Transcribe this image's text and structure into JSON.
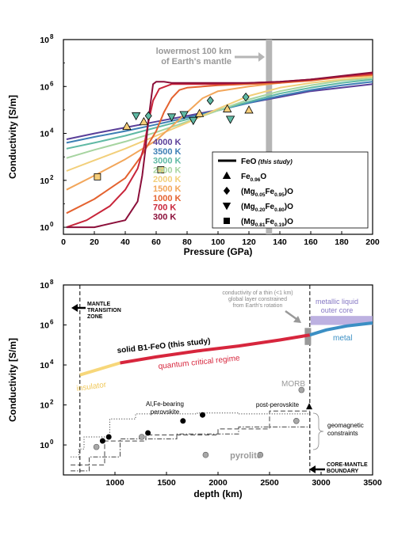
{
  "colors": {
    "t4000": "#5a3f99",
    "t3500": "#3d7fb5",
    "t3000": "#5fb9a4",
    "t2500": "#a6d4a0",
    "t2000": "#f2cf7a",
    "t1500": "#f2a65a",
    "t1000": "#e4622f",
    "t700": "#c8253a",
    "t300": "#8b0f3a",
    "insulator": "#f7d77a",
    "quantum": "#d7263d",
    "metal": "#3b8fc4",
    "liquid_core": "#b6a9de",
    "band": "#b5b5b5",
    "marker_fill": "#5fb9a4",
    "square_fill": "#f6cd78",
    "grey_point": "#a8a8a8"
  },
  "chart_data": [
    {
      "type": "line",
      "xlabel": "Pressure (GPa)",
      "ylabel": "Conductivity [S/m]",
      "xlim": [
        0,
        200
      ],
      "ylim_log10": [
        -0.3,
        8
      ],
      "xticks": [
        "0",
        "20",
        "40",
        "60",
        "80",
        "100",
        "120",
        "140",
        "160",
        "180",
        "200"
      ],
      "yticks": [
        {
          "base": "10",
          "exp": "0",
          "log": 0
        },
        {
          "base": "10",
          "exp": "2",
          "log": 2
        },
        {
          "base": "10",
          "exp": "4",
          "log": 4
        },
        {
          "base": "10",
          "exp": "6",
          "log": 6
        },
        {
          "base": "10",
          "exp": "8",
          "log": 8
        }
      ],
      "band": {
        "x0": 131,
        "x1": 135,
        "label_line1": "lowermost 100 km",
        "label_line2": "of Earth's mantle"
      },
      "temperature_labels": [
        "4000 K",
        "3500 K",
        "3000 K",
        "2500 K",
        "2000 K",
        "1500 K",
        "1000 K",
        "700 K",
        "300 K"
      ],
      "series": [
        {
          "name": "4000 K",
          "color_key": "t4000",
          "x": [
            2,
            20,
            40,
            60,
            80,
            100,
            120,
            140,
            160,
            180,
            200
          ],
          "y_log10": [
            3.75,
            4.0,
            4.25,
            4.5,
            4.75,
            5.0,
            5.3,
            5.55,
            5.8,
            5.95,
            6.1
          ]
        },
        {
          "name": "3500 K",
          "color_key": "t3500",
          "x": [
            2,
            20,
            40,
            60,
            80,
            100,
            120,
            140,
            160,
            180,
            200
          ],
          "y_log10": [
            3.6,
            3.85,
            4.1,
            4.38,
            4.68,
            4.98,
            5.3,
            5.6,
            5.85,
            6.05,
            6.2
          ]
        },
        {
          "name": "3000 K",
          "color_key": "t3000",
          "x": [
            2,
            20,
            40,
            60,
            80,
            100,
            120,
            140,
            160,
            180,
            200
          ],
          "y_log10": [
            3.35,
            3.6,
            3.9,
            4.25,
            4.6,
            4.98,
            5.35,
            5.7,
            5.95,
            6.15,
            6.3
          ]
        },
        {
          "name": "2500 K",
          "color_key": "t2500",
          "x": [
            2,
            20,
            40,
            60,
            80,
            100,
            120,
            140,
            160,
            180,
            200
          ],
          "y_log10": [
            2.95,
            3.3,
            3.65,
            4.05,
            4.5,
            4.98,
            5.45,
            5.8,
            6.05,
            6.25,
            6.35
          ]
        },
        {
          "name": "2000 K",
          "color_key": "t2000",
          "x": [
            2,
            20,
            40,
            60,
            80,
            100,
            120,
            140,
            160,
            180,
            200
          ],
          "y_log10": [
            2.4,
            2.85,
            3.35,
            3.9,
            4.45,
            5.05,
            5.6,
            5.95,
            6.15,
            6.3,
            6.42
          ]
        },
        {
          "name": "1500 K",
          "color_key": "t1500",
          "x": [
            2,
            20,
            40,
            60,
            70,
            80,
            90,
            100,
            120,
            140,
            160,
            180,
            200
          ],
          "y_log10": [
            1.6,
            2.2,
            2.9,
            3.7,
            4.3,
            4.9,
            5.5,
            5.8,
            6.0,
            6.15,
            6.3,
            6.4,
            6.48
          ]
        },
        {
          "name": "1000 K",
          "color_key": "t1000",
          "x": [
            2,
            20,
            40,
            50,
            60,
            65,
            70,
            75,
            80,
            90,
            100,
            120,
            140,
            160,
            180,
            200
          ],
          "y_log10": [
            0.6,
            1.2,
            2.1,
            3.0,
            4.1,
            4.9,
            5.5,
            5.85,
            5.95,
            6.0,
            6.05,
            6.1,
            6.15,
            6.25,
            6.4,
            6.5
          ]
        },
        {
          "name": "700 K",
          "color_key": "t700",
          "x": [
            2,
            15,
            30,
            40,
            48,
            52,
            55,
            58,
            62,
            70,
            80,
            100,
            120,
            140,
            160,
            180,
            200
          ],
          "y_log10": [
            0.0,
            0.3,
            0.9,
            1.6,
            2.5,
            3.4,
            4.5,
            5.4,
            5.9,
            6.1,
            6.1,
            6.1,
            6.15,
            6.2,
            6.3,
            6.42,
            6.55
          ]
        },
        {
          "name": "300 K",
          "color_key": "t300",
          "x": [
            2,
            20,
            40,
            48,
            51,
            53,
            55,
            57,
            58,
            60,
            62,
            65,
            70,
            80,
            90,
            100,
            110,
            120,
            140,
            160,
            180,
            200
          ],
          "y_log10": [
            0.0,
            0.0,
            0.3,
            1.1,
            2.2,
            3.3,
            4.6,
            5.6,
            6.1,
            6.2,
            6.2,
            6.2,
            6.15,
            6.15,
            6.15,
            6.15,
            6.15,
            6.15,
            6.2,
            6.3,
            6.45,
            6.6
          ]
        }
      ],
      "markers": [
        {
          "shape": "tri_up",
          "x": [
            41,
            52,
            88,
            106,
            120
          ],
          "y_log10": [
            4.3,
            4.5,
            4.85,
            5.05,
            5.0
          ]
        },
        {
          "shape": "diamond",
          "x": [
            55,
            95,
            118
          ],
          "y_log10": [
            4.75,
            5.4,
            5.55
          ]
        },
        {
          "shape": "tri_down",
          "x": [
            47,
            70,
            78,
            84,
            108
          ],
          "y_log10": [
            4.75,
            4.7,
            4.8,
            4.55,
            4.6
          ]
        },
        {
          "shape": "square",
          "x": [
            22,
            63,
            117,
            131
          ],
          "y_log10": [
            2.15,
            2.45,
            2.65,
            2.85
          ]
        }
      ],
      "legend": [
        {
          "symbol": "line",
          "main": "FeO",
          "sub": "",
          "after": "",
          "note": "(this study)"
        },
        {
          "symbol": "tri_up",
          "main": "Fe",
          "sub": "0.96",
          "after": "O",
          "note": ""
        },
        {
          "symbol": "diamond",
          "main": "(Mg",
          "sub": "0.05",
          "after": "Fe",
          "sub2": "0.95",
          "after2": ")O",
          "note": ""
        },
        {
          "symbol": "tri_down",
          "main": "(Mg",
          "sub": "0.20",
          "after": "Fe",
          "sub2": "0.80",
          "after2": ")O",
          "note": ""
        },
        {
          "symbol": "square",
          "main": "(Mg",
          "sub": "0.81",
          "after": "Fe",
          "sub2": "0.19",
          "after2": ")O",
          "note": ""
        }
      ]
    },
    {
      "type": "line",
      "xlabel": "depth (km)",
      "ylabel": "Conductivity [S/m]",
      "xlim": [
        500,
        3500
      ],
      "ylim_log10": [
        -1.5,
        8
      ],
      "xticks": [
        "1000",
        "1500",
        "2000",
        "2500",
        "3000",
        "3500"
      ],
      "yticks": [
        {
          "base": "10",
          "exp": "0",
          "log": 0
        },
        {
          "base": "10",
          "exp": "2",
          "log": 2
        },
        {
          "base": "10",
          "exp": "4",
          "log": 4
        },
        {
          "base": "10",
          "exp": "6",
          "log": 6
        },
        {
          "base": "10",
          "exp": "8",
          "log": 8
        }
      ],
      "vlines_depth": [
        660,
        2891
      ],
      "segments": [
        {
          "name": "insulator",
          "color_key": "insulator",
          "x": [
            660,
            1050
          ],
          "y_log10": [
            3.5,
            4.1
          ]
        },
        {
          "name": "quantum critical regime",
          "color_key": "quantum",
          "x": [
            1050,
            1400,
            1800,
            2200,
            2600,
            2891
          ],
          "y_log10": [
            4.1,
            4.4,
            4.7,
            4.95,
            5.25,
            5.5
          ]
        },
        {
          "name": "metal",
          "color_key": "metal",
          "x": [
            2891,
            3050,
            3250,
            3500
          ],
          "y_log10": [
            5.5,
            5.75,
            5.95,
            6.1
          ]
        }
      ],
      "labels": {
        "mantle_tz": [
          "MANTLE",
          "TRANSITION",
          "ZONE"
        ],
        "cmb": [
          "CORE-MANTLE",
          "BOUNDARY"
        ],
        "thin_layer": [
          "conductivity of a thin (<1 km)",
          "global layer constrained",
          "from Earth's rotation"
        ],
        "liquid_core": [
          "metallic liquid",
          "outer core"
        ],
        "solid_feo": "solid B1-FeO (this study)",
        "quantum": "quantum critical regime",
        "insulator": "insulator",
        "metal": "metal",
        "morb": "MORB",
        "ppv": "post-perovskite",
        "afp": [
          "Al,Fe-bearing",
          "perovskite"
        ],
        "pyrolite": "pyrolite",
        "geomag": [
          "geomagnetic",
          "constraints"
        ]
      },
      "black_points": {
        "x": [
          880,
          940,
          1320,
          1660,
          1850
        ],
        "y_log10": [
          0.2,
          0.4,
          0.6,
          1.2,
          1.5
        ]
      },
      "grey_points": {
        "x": [
          820,
          1260,
          1880,
          2410,
          2760,
          2810
        ],
        "y_log10": [
          -0.1,
          0.4,
          -0.5,
          -0.5,
          1.2,
          2.75
        ]
      },
      "geomag_profiles": [
        {
          "style": "dotted",
          "x": [
            570,
            650,
            650,
            700,
            700,
            950,
            950,
            1200,
            1200,
            1800,
            1800,
            2200,
            2200,
            2891
          ],
          "y_log10": [
            -0.6,
            -0.6,
            -0.2,
            -0.2,
            0.4,
            0.4,
            1.3,
            1.3,
            1.55,
            1.55,
            1.6,
            1.6,
            1.55,
            1.55
          ]
        },
        {
          "style": "dashed",
          "x": [
            570,
            900,
            900,
            1300,
            1300,
            2000,
            2000,
            2500,
            2500,
            2891
          ],
          "y_log10": [
            -1.0,
            -1.0,
            0.2,
            0.2,
            0.5,
            0.5,
            0.8,
            0.8,
            1.7,
            1.7
          ]
        },
        {
          "style": "dashdot",
          "x": [
            570,
            750,
            750,
            1050,
            1050,
            1600,
            1600,
            2200,
            2200,
            2891
          ],
          "y_log10": [
            -1.3,
            -1.3,
            -0.6,
            -0.6,
            0.3,
            0.3,
            0.55,
            0.55,
            0.9,
            0.9
          ]
        }
      ]
    }
  ]
}
